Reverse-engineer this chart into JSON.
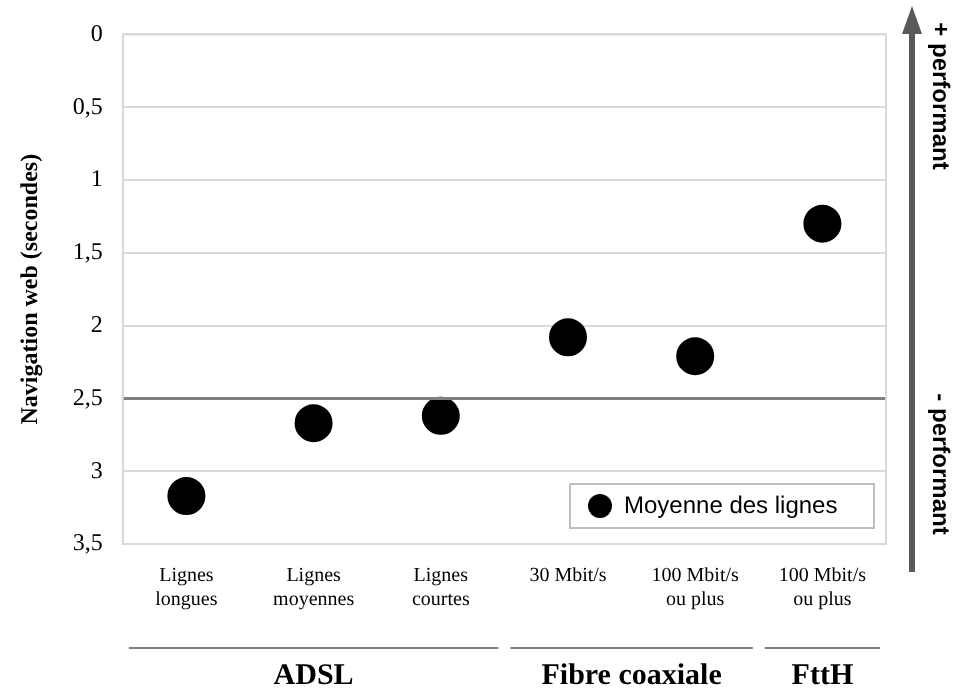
{
  "chart_data": {
    "type": "scatter",
    "ylabel": "Navigation web (secondes)",
    "categories": [
      "Lignes\nlongues",
      "Lignes\nmoyennes",
      "Lignes\ncourtes",
      "30 Mbit/s",
      "100 Mbit/s\nou plus",
      "100 Mbit/s\nou plus"
    ],
    "series": [
      {
        "name": "Moyenne des lignes",
        "color": "#000000",
        "values": [
          3.17,
          2.67,
          2.62,
          2.08,
          2.21,
          1.3
        ]
      }
    ],
    "ylim": [
      3.5,
      0
    ],
    "yticks": [
      {
        "value": 0,
        "label": "0"
      },
      {
        "value": 0.5,
        "label": "0,5"
      },
      {
        "value": 1,
        "label": "1"
      },
      {
        "value": 1.5,
        "label": "1,5"
      },
      {
        "value": 2,
        "label": "2"
      },
      {
        "value": 2.5,
        "label": "2,5"
      },
      {
        "value": 3,
        "label": "3"
      },
      {
        "value": 3.5,
        "label": "3,5"
      }
    ],
    "grid": "y",
    "legend": "bottom right",
    "marker": "circle",
    "ref_lines": [
      {
        "axis": "y",
        "value": 2.5,
        "color": "#808080"
      }
    ],
    "annotations": [
      "ADSL",
      "Fibre coaxiale",
      "FttH",
      "+ performant",
      "- performant"
    ]
  }
}
